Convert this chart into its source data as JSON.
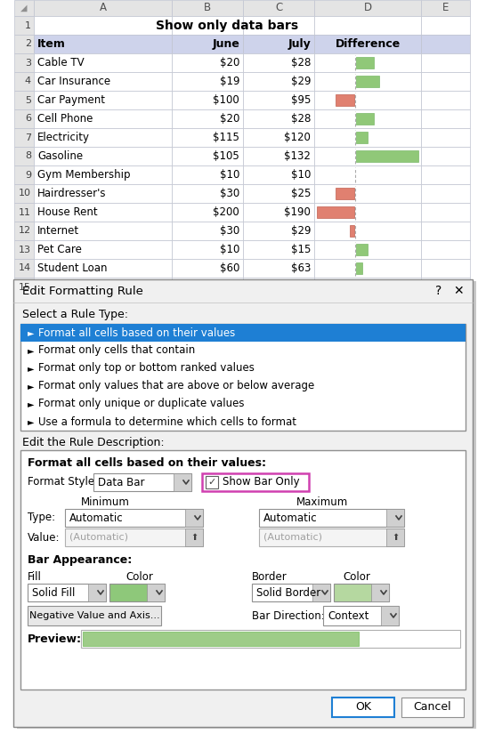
{
  "title": "Show only data bars",
  "rows_data": [
    [
      "Cable TV",
      "$20",
      "$28",
      8
    ],
    [
      "Car Insurance",
      "$19",
      "$29",
      10
    ],
    [
      "Car Payment",
      "$100",
      "$95",
      -5
    ],
    [
      "Cell Phone",
      "$20",
      "$28",
      8
    ],
    [
      "Electricity",
      "$115",
      "$120",
      5
    ],
    [
      "Gasoline",
      "$105",
      "$132",
      27
    ],
    [
      "Gym Membership",
      "$10",
      "$10",
      0
    ],
    [
      "Hairdresser's",
      "$30",
      "$25",
      -5
    ],
    [
      "House Rent",
      "$200",
      "$190",
      -10
    ],
    [
      "Internet",
      "$30",
      "$29",
      -1
    ],
    [
      "Pet Care",
      "$10",
      "$15",
      5
    ],
    [
      "Student Loan",
      "$60",
      "$63",
      3
    ]
  ],
  "bar_green": "#90c878",
  "bar_red": "#e08070",
  "bar_green_fill": "#90c878",
  "bar_green_border": "#7ab868",
  "header_bg": "#ced3eb",
  "col_hdr_bg": "#e4e4e4",
  "grid_color": "#c0c4d0",
  "row_num_bg": "#e4e4e4",
  "selected_bg": "#1e7fd4",
  "dialog_bg": "#f0f0f0",
  "desc_box_bg": "#f8f8f8",
  "green_swatch": "#8ec87a",
  "green_swatch_light": "#b5d8a0",
  "preview_bar": "#9ecc88",
  "ok_border": "#1e7fd4",
  "pink_border": "#d040b0",
  "fig_w": 5.46,
  "fig_h": 8.25,
  "dpi": 100,
  "rule_items": [
    "Format all cells based on their values",
    "Format only cells that contain",
    "Format only top or bottom ranked values",
    "Format only values that are above or below average",
    "Format only unique or duplicate values",
    "Use a formula to determine which cells to format"
  ]
}
